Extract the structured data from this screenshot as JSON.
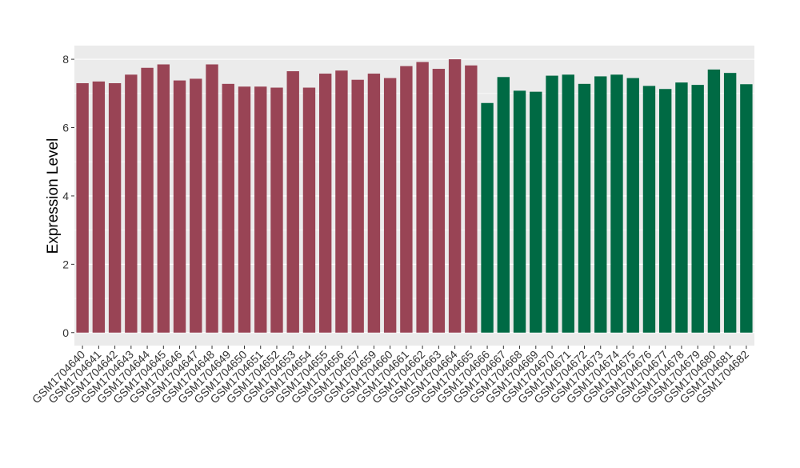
{
  "chart_data": {
    "type": "bar",
    "y_label": "Expression Level",
    "categories": [
      "GSM1704640",
      "GSM1704641",
      "GSM1704642",
      "GSM1704643",
      "GSM1704644",
      "GSM1704645",
      "GSM1704646",
      "GSM1704647",
      "GSM1704648",
      "GSM1704649",
      "GSM1704650",
      "GSM1704651",
      "GSM1704652",
      "GSM1704653",
      "GSM1704654",
      "GSM1704655",
      "GSM1704656",
      "GSM1704657",
      "GSM1704659",
      "GSM1704660",
      "GSM1704661",
      "GSM1704662",
      "GSM1704663",
      "GSM1704664",
      "GSM1704665",
      "GSM1704666",
      "GSM1704667",
      "GSM1704668",
      "GSM1704669",
      "GSM1704670",
      "GSM1704671",
      "GSM1704672",
      "GSM1704673",
      "GSM1704674",
      "GSM1704675",
      "GSM1704676",
      "GSM1704677",
      "GSM1704678",
      "GSM1704679",
      "GSM1704680",
      "GSM1704681",
      "GSM1704682"
    ],
    "values": [
      7.3,
      7.35,
      7.3,
      7.55,
      7.75,
      7.85,
      7.38,
      7.43,
      7.85,
      7.28,
      7.2,
      7.2,
      7.17,
      7.65,
      7.17,
      7.58,
      7.67,
      7.4,
      7.58,
      7.45,
      7.8,
      7.92,
      7.72,
      8.0,
      7.82,
      6.72,
      7.48,
      7.08,
      7.05,
      7.52,
      7.55,
      7.28,
      7.5,
      7.55,
      7.45,
      7.22,
      7.13,
      7.32,
      7.25,
      7.7,
      7.6,
      7.27
    ],
    "colors": [
      "#994455",
      "#994455",
      "#994455",
      "#994455",
      "#994455",
      "#994455",
      "#994455",
      "#994455",
      "#994455",
      "#994455",
      "#994455",
      "#994455",
      "#994455",
      "#994455",
      "#994455",
      "#994455",
      "#994455",
      "#994455",
      "#994455",
      "#994455",
      "#994455",
      "#994455",
      "#994455",
      "#994455",
      "#994455",
      "#006a44",
      "#006a44",
      "#006a44",
      "#006a44",
      "#006a44",
      "#006a44",
      "#006a44",
      "#006a44",
      "#006a44",
      "#006a44",
      "#006a44",
      "#006a44",
      "#006a44",
      "#006a44",
      "#006a44",
      "#006a44",
      "#006a44"
    ],
    "ylim": [
      -0.38,
      8.4
    ],
    "yticks": [
      0,
      2,
      4,
      6,
      8
    ],
    "grid": true
  }
}
